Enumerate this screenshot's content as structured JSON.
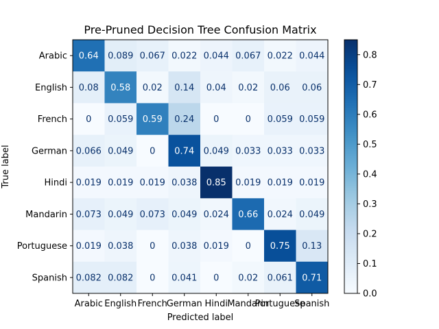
{
  "chart_data": {
    "type": "heatmap",
    "title": "Pre-Pruned Decision Tree Confusion Matrix",
    "xlabel": "Predicted label",
    "ylabel": "True label",
    "categories": [
      "Arabic",
      "English",
      "French",
      "German",
      "Hindi",
      "Mandarin",
      "Portuguese",
      "Spanish"
    ],
    "cell_labels": [
      [
        "0.64",
        "0.089",
        "0.067",
        "0.022",
        "0.044",
        "0.067",
        "0.022",
        "0.044"
      ],
      [
        "0.08",
        "0.58",
        "0.02",
        "0.14",
        "0.04",
        "0.02",
        "0.06",
        "0.06"
      ],
      [
        "0",
        "0.059",
        "0.59",
        "0.24",
        "0",
        "0",
        "0.059",
        "0.059"
      ],
      [
        "0.066",
        "0.049",
        "0",
        "0.74",
        "0.049",
        "0.033",
        "0.033",
        "0.033"
      ],
      [
        "0.019",
        "0.019",
        "0.019",
        "0.038",
        "0.85",
        "0.019",
        "0.019",
        "0.019"
      ],
      [
        "0.073",
        "0.049",
        "0.073",
        "0.049",
        "0.024",
        "0.66",
        "0.024",
        "0.049"
      ],
      [
        "0.019",
        "0.038",
        "0",
        "0.038",
        "0.019",
        "0",
        "0.75",
        "0.13"
      ],
      [
        "0.082",
        "0.082",
        "0",
        "0.041",
        "0",
        "0.02",
        "0.061",
        "0.71"
      ]
    ],
    "values": [
      [
        0.64,
        0.089,
        0.067,
        0.022,
        0.044,
        0.067,
        0.022,
        0.044
      ],
      [
        0.08,
        0.58,
        0.02,
        0.14,
        0.04,
        0.02,
        0.06,
        0.06
      ],
      [
        0,
        0.059,
        0.59,
        0.24,
        0,
        0,
        0.059,
        0.059
      ],
      [
        0.066,
        0.049,
        0,
        0.74,
        0.049,
        0.033,
        0.033,
        0.033
      ],
      [
        0.019,
        0.019,
        0.019,
        0.038,
        0.85,
        0.019,
        0.019,
        0.019
      ],
      [
        0.073,
        0.049,
        0.073,
        0.049,
        0.024,
        0.66,
        0.024,
        0.049
      ],
      [
        0.019,
        0.038,
        0,
        0.038,
        0.019,
        0,
        0.75,
        0.13
      ],
      [
        0.082,
        0.082,
        0,
        0.041,
        0,
        0.02,
        0.061,
        0.71
      ]
    ],
    "colorbar": {
      "colormap": "Blues",
      "range": [
        0,
        0.85
      ],
      "ticks": [
        "0.0",
        "0.1",
        "0.2",
        "0.3",
        "0.4",
        "0.5",
        "0.6",
        "0.7",
        "0.8"
      ]
    },
    "grid": false
  }
}
